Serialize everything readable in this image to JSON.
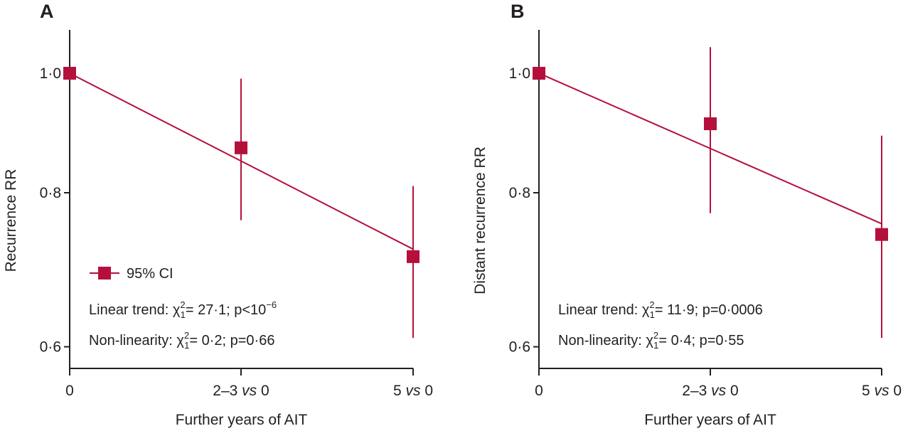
{
  "colors": {
    "marker": "#b5103c",
    "axis": "#231f20"
  },
  "chart_data": [
    {
      "panel": "A",
      "type": "scatter",
      "categories": [
        "0",
        "2–3 vs 0",
        "5 vs 0"
      ],
      "x_ticks": [
        {
          "prefix": "0",
          "italic": "",
          "suffix": ""
        },
        {
          "prefix": "2–3 ",
          "italic": "vs",
          "suffix": " 0"
        },
        {
          "prefix": "5 ",
          "italic": "vs",
          "suffix": " 0"
        }
      ],
      "xlabel": "Further years of AIT",
      "ylabel": "Recurrence RR",
      "y_scale": "log",
      "ylim": [
        0.58,
        1.06
      ],
      "y_ticks": [
        0.6,
        0.8,
        1.0
      ],
      "y_tick_labels": [
        "0·6",
        "0·8",
        "1·0"
      ],
      "points": [
        {
          "category": "0",
          "rr": 1.0,
          "ci_low": null,
          "ci_high": null
        },
        {
          "category": "2–3 vs 0",
          "rr": 0.87,
          "ci_low": 0.76,
          "ci_high": 0.99
        },
        {
          "category": "5 vs 0",
          "rr": 0.71,
          "ci_low": 0.61,
          "ci_high": 0.81
        }
      ],
      "trend_line": {
        "start": 1.0,
        "end": 0.72
      },
      "legend": {
        "label": "95% CI",
        "position": "lower-left"
      },
      "notes": [
        {
          "prefix": "Linear trend: ",
          "stat": "27·1; p<10",
          "sup": "−6"
        },
        {
          "prefix": "Non-linearity: ",
          "stat": "0·2; p=0·66",
          "sup": ""
        }
      ]
    },
    {
      "panel": "B",
      "type": "scatter",
      "categories": [
        "0",
        "2–3 vs 0",
        "5 vs 0"
      ],
      "x_ticks": [
        {
          "prefix": "0",
          "italic": "",
          "suffix": ""
        },
        {
          "prefix": "2–3 ",
          "italic": "vs",
          "suffix": " 0"
        },
        {
          "prefix": "5 ",
          "italic": "vs",
          "suffix": " 0"
        }
      ],
      "xlabel": "Further years of AIT",
      "ylabel": "Distant recurrence RR",
      "y_scale": "log",
      "ylim": [
        0.58,
        1.06
      ],
      "y_ticks": [
        0.6,
        0.8,
        1.0
      ],
      "y_tick_labels": [
        "0·6",
        "0·8",
        "1·0"
      ],
      "points": [
        {
          "category": "0",
          "rr": 1.0,
          "ci_low": null,
          "ci_high": null
        },
        {
          "category": "2–3 vs 0",
          "rr": 0.91,
          "ci_low": 0.77,
          "ci_high": 1.05
        },
        {
          "category": "5 vs 0",
          "rr": 0.74,
          "ci_low": 0.61,
          "ci_high": 0.89
        }
      ],
      "trend_line": {
        "start": 1.0,
        "end": 0.755
      },
      "notes": [
        {
          "prefix": "Linear trend: ",
          "stat": "11·9; p=0·0006",
          "sup": ""
        },
        {
          "prefix": "Non-linearity: ",
          "stat": "0·4; p=0·55",
          "sup": ""
        }
      ]
    }
  ]
}
